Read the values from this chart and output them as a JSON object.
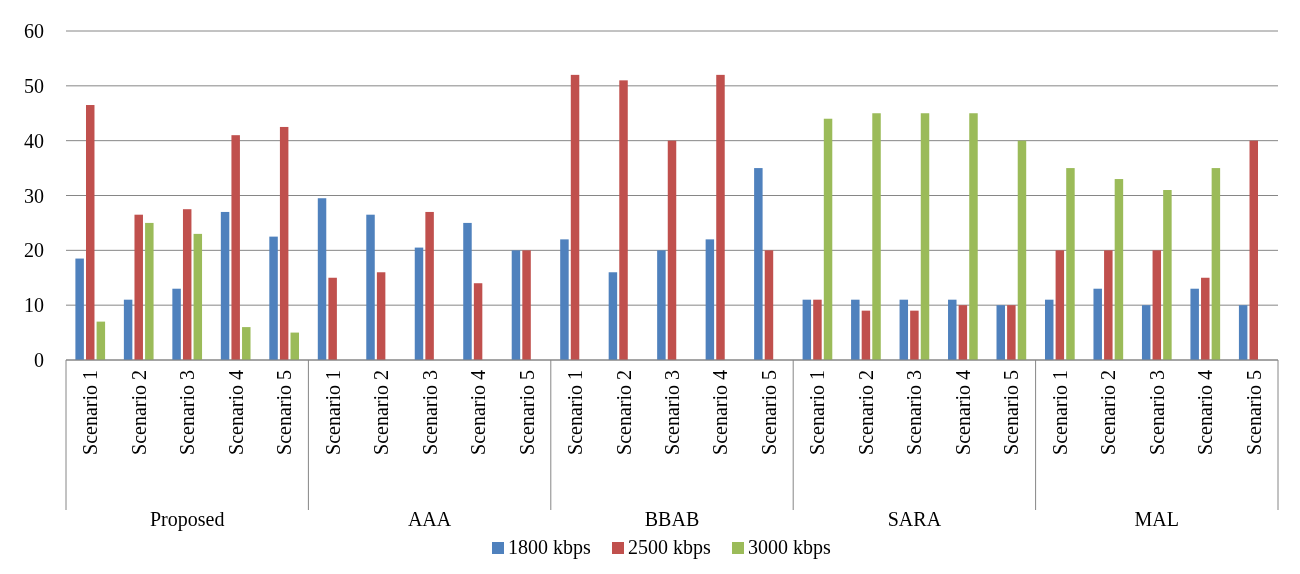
{
  "chart_data": {
    "type": "bar",
    "categories": [
      "Scenario 1",
      "Scenario 2",
      "Scenario 3",
      "Scenario 4",
      "Scenario 5",
      "Scenario 1",
      "Scenario 2",
      "Scenario 3",
      "Scenario 4",
      "Scenario 5",
      "Scenario 1",
      "Scenario 2",
      "Scenario 3",
      "Scenario 4",
      "Scenario 5",
      "Scenario 1",
      "Scenario 2",
      "Scenario 3",
      "Scenario 4",
      "Scenario 5",
      "Scenario 1",
      "Scenario 2",
      "Scenario 3",
      "Scenario 4",
      "Scenario 5"
    ],
    "series": [
      {
        "name": "1800 kbps",
        "color": "#4f81bd",
        "values": [
          18.5,
          11,
          13,
          27,
          22.5,
          29.5,
          26.5,
          20.5,
          25,
          20,
          22,
          16,
          20,
          22,
          35,
          11,
          11,
          11,
          11,
          10,
          11,
          13,
          10,
          13,
          10
        ]
      },
      {
        "name": "2500 kbps",
        "color": "#c0504d",
        "values": [
          46.5,
          26.5,
          27.5,
          41,
          42.5,
          15,
          16,
          27,
          14,
          20,
          52,
          51,
          40,
          52,
          20,
          11,
          9,
          9,
          10,
          10,
          20,
          20,
          20,
          15,
          40
        ]
      },
      {
        "name": "3000 kbps",
        "color": "#9bbb59",
        "values": [
          7,
          25,
          23,
          6,
          5,
          null,
          null,
          null,
          null,
          null,
          null,
          null,
          null,
          null,
          null,
          44,
          45,
          45,
          45,
          40,
          35,
          33,
          31,
          35,
          null
        ]
      }
    ],
    "annotations": [
      "Proposed",
      "AAA",
      "BBAB",
      "SARA",
      "MAL"
    ],
    "ylim": [
      0,
      60
    ],
    "yticks": [
      0,
      10,
      20,
      30,
      40,
      50,
      60
    ],
    "grid": "y",
    "legend": "bottom"
  }
}
